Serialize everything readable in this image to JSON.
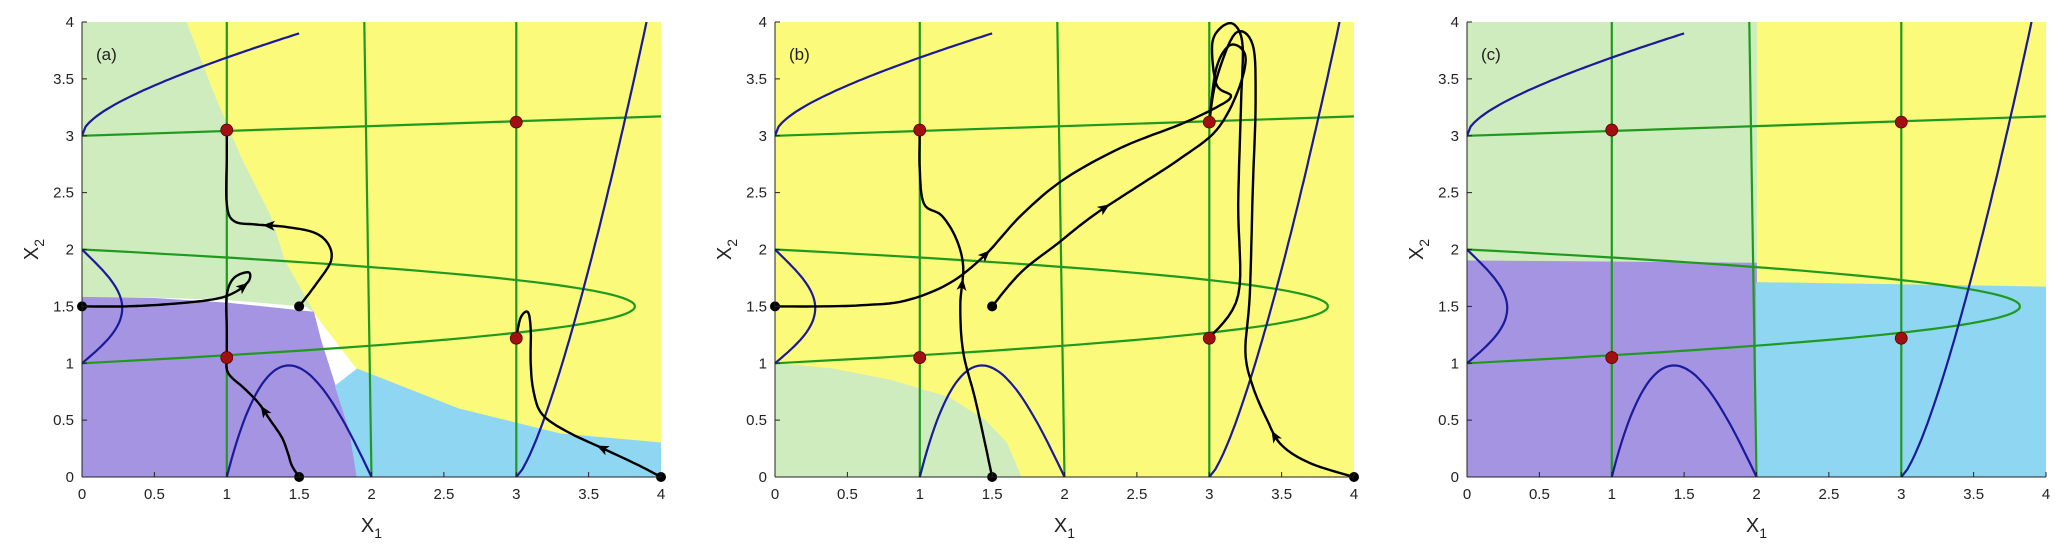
{
  "chart_data": [
    {
      "type": "phase-portrait",
      "panel_label": "(a)",
      "xlabel": "X",
      "xlabel_sub": "1",
      "ylabel": "X",
      "ylabel_sub": "2",
      "xlim": [
        0,
        4
      ],
      "ylim": [
        0,
        4
      ],
      "xticks": [
        "0",
        "0.5",
        "1",
        "1.5",
        "2",
        "2.5",
        "3",
        "3.5",
        "4"
      ],
      "yticks": [
        "0",
        "0.5",
        "1",
        "1.5",
        "2",
        "2.5",
        "3",
        "3.5",
        "4"
      ],
      "colors": {
        "yellow": "#fbfa7a",
        "green": "#cfecbf",
        "purple": "#a594e2",
        "blue": "#8fd6f2",
        "nullcline_green": "#1f9a1f",
        "nullcline_blue": "#1a1a9a",
        "fixed_point": "#a01010",
        "trajectory": "#000000"
      },
      "regions": [
        {
          "color": "yellow",
          "points": [
            [
              0.72,
              4
            ],
            [
              4,
              4
            ],
            [
              4,
              0.3
            ],
            [
              3.3,
              0.38
            ],
            [
              2.6,
              0.6
            ],
            [
              1.9,
              0.95
            ],
            [
              1.6,
              1.45
            ],
            [
              1.4,
              1.9
            ],
            [
              1.3,
              2.3
            ],
            [
              1.1,
              2.8
            ],
            [
              0.9,
              3.4
            ]
          ]
        },
        {
          "color": "green",
          "points": [
            [
              0,
              4
            ],
            [
              0.72,
              4
            ],
            [
              0.9,
              3.4
            ],
            [
              1.1,
              2.8
            ],
            [
              1.3,
              2.3
            ],
            [
              1.4,
              1.9
            ],
            [
              1.6,
              1.45
            ],
            [
              1.55,
              1.5
            ],
            [
              1.0,
              1.56
            ],
            [
              0.5,
              1.58
            ],
            [
              0,
              1.58
            ]
          ]
        },
        {
          "color": "purple",
          "points": [
            [
              0,
              0
            ],
            [
              1.9,
              0
            ],
            [
              1.85,
              0.4
            ],
            [
              1.75,
              0.8
            ],
            [
              1.65,
              1.2
            ],
            [
              1.6,
              1.45
            ],
            [
              1.0,
              1.53
            ],
            [
              0.5,
              1.57
            ],
            [
              0,
              1.58
            ]
          ]
        },
        {
          "color": "blue",
          "points": [
            [
              1.9,
              0
            ],
            [
              4,
              0
            ],
            [
              4,
              0.3
            ],
            [
              3.3,
              0.38
            ],
            [
              2.6,
              0.6
            ],
            [
              1.9,
              0.95
            ],
            [
              1.75,
              0.8
            ],
            [
              1.85,
              0.4
            ]
          ]
        }
      ],
      "fixed_points": [
        [
          1,
          3.05
        ],
        [
          3,
          3.12
        ],
        [
          1,
          1.05
        ],
        [
          3,
          1.22
        ]
      ],
      "trajectories": [
        {
          "arrows_at": [
            0.5
          ],
          "points": [
            [
              1.5,
              0
            ],
            [
              1.45,
              0.1
            ],
            [
              1.42,
              0.22
            ],
            [
              1.38,
              0.35
            ],
            [
              1.3,
              0.5
            ],
            [
              1.22,
              0.65
            ],
            [
              1.12,
              0.78
            ],
            [
              1.03,
              0.88
            ],
            [
              1,
              0.95
            ],
            [
              1,
              1.05
            ]
          ]
        },
        {
          "arrows_at": [
            0.45
          ],
          "points": [
            [
              0,
              1.5
            ],
            [
              0.3,
              1.5
            ],
            [
              0.6,
              1.52
            ],
            [
              0.9,
              1.56
            ],
            [
              1.05,
              1.62
            ],
            [
              1.15,
              1.72
            ],
            [
              1.15,
              1.8
            ],
            [
              1.05,
              1.75
            ],
            [
              1,
              1.6
            ],
            [
              1,
              1.3
            ],
            [
              1,
              1.05
            ]
          ]
        },
        {
          "arrows_at": [
            0.55
          ],
          "points": [
            [
              1.5,
              1.5
            ],
            [
              1.62,
              1.7
            ],
            [
              1.72,
              1.9
            ],
            [
              1.7,
              2.05
            ],
            [
              1.6,
              2.15
            ],
            [
              1.4,
              2.2
            ],
            [
              1.2,
              2.22
            ],
            [
              1.05,
              2.25
            ],
            [
              1,
              2.4
            ],
            [
              1,
              2.8
            ],
            [
              1,
              3.05
            ]
          ]
        },
        {
          "arrows_at": [
            0.2
          ],
          "points": [
            [
              4,
              0
            ],
            [
              3.85,
              0.1
            ],
            [
              3.6,
              0.25
            ],
            [
              3.35,
              0.4
            ],
            [
              3.18,
              0.55
            ],
            [
              3.12,
              0.75
            ],
            [
              3.1,
              1.0
            ],
            [
              3.1,
              1.3
            ],
            [
              3.08,
              1.45
            ],
            [
              3.03,
              1.4
            ],
            [
              3,
              1.22
            ]
          ]
        }
      ],
      "start_points": [
        [
          1.5,
          0
        ],
        [
          0,
          1.5
        ],
        [
          1.5,
          1.5
        ],
        [
          4,
          0
        ]
      ]
    },
    {
      "type": "phase-portrait",
      "panel_label": "(b)",
      "xlabel": "X",
      "xlabel_sub": "1",
      "ylabel": "X",
      "ylabel_sub": "2",
      "xlim": [
        0,
        4
      ],
      "ylim": [
        0,
        4
      ],
      "xticks": [
        "0",
        "0.5",
        "1",
        "1.5",
        "2",
        "2.5",
        "3",
        "3.5",
        "4"
      ],
      "yticks": [
        "0",
        "0.5",
        "1",
        "1.5",
        "2",
        "2.5",
        "3",
        "3.5",
        "4"
      ],
      "colors": {
        "yellow": "#fbfa7a",
        "green": "#cfecbf",
        "purple": "#a594e2",
        "blue": "#8fd6f2",
        "nullcline_green": "#1f9a1f",
        "nullcline_blue": "#1a1a9a",
        "fixed_point": "#a01010",
        "trajectory": "#000000"
      },
      "regions": [
        {
          "color": "yellow",
          "points": [
            [
              0,
              0
            ],
            [
              4,
              0
            ],
            [
              4,
              4
            ],
            [
              0,
              4
            ]
          ]
        },
        {
          "color": "green",
          "points": [
            [
              0,
              0
            ],
            [
              1.7,
              0
            ],
            [
              1.6,
              0.3
            ],
            [
              1.45,
              0.5
            ],
            [
              1.2,
              0.7
            ],
            [
              0.8,
              0.85
            ],
            [
              0.4,
              0.95
            ],
            [
              0,
              1.0
            ]
          ]
        }
      ],
      "fixed_points": [
        [
          1,
          3.05
        ],
        [
          3,
          3.12
        ],
        [
          1,
          1.05
        ],
        [
          3,
          1.22
        ]
      ],
      "trajectories": [
        {
          "arrows_at": [
            0.25
          ],
          "points": [
            [
              0,
              1.5
            ],
            [
              0.3,
              1.5
            ],
            [
              0.6,
              1.51
            ],
            [
              0.9,
              1.55
            ],
            [
              1.2,
              1.7
            ],
            [
              1.45,
              1.95
            ],
            [
              1.7,
              2.3
            ],
            [
              2.0,
              2.62
            ],
            [
              2.4,
              2.9
            ],
            [
              2.8,
              3.1
            ],
            [
              3.05,
              3.25
            ],
            [
              3.15,
              3.35
            ],
            [
              3.05,
              3.45
            ],
            [
              3.02,
              3.8
            ],
            [
              3.08,
              3.95
            ],
            [
              3.17,
              3.98
            ],
            [
              3.23,
              3.8
            ],
            [
              3.22,
              3.3
            ],
            [
              3.2,
              2.4
            ],
            [
              3.2,
              1.6
            ],
            [
              3.0,
              1.22
            ]
          ]
        },
        {
          "arrows_at": [
            0.3
          ],
          "points": [
            [
              1.5,
              1.5
            ],
            [
              1.7,
              1.8
            ],
            [
              1.95,
              2.05
            ],
            [
              2.2,
              2.3
            ],
            [
              2.5,
              2.55
            ],
            [
              2.8,
              2.8
            ],
            [
              3.05,
              3.05
            ],
            [
              3.2,
              3.4
            ],
            [
              3.25,
              3.7
            ],
            [
              3.15,
              3.8
            ],
            [
              3.05,
              3.6
            ],
            [
              3.0,
              3.12
            ]
          ]
        },
        {
          "arrows_at": [
            0.45
          ],
          "points": [
            [
              1.5,
              0
            ],
            [
              1.45,
              0.3
            ],
            [
              1.38,
              0.7
            ],
            [
              1.3,
              1.1
            ],
            [
              1.28,
              1.5
            ],
            [
              1.3,
              1.85
            ],
            [
              1.25,
              2.1
            ],
            [
              1.15,
              2.3
            ],
            [
              1.03,
              2.4
            ],
            [
              1,
              2.7
            ],
            [
              1,
              3.05
            ]
          ]
        },
        {
          "arrows_at": [
            0.2
          ],
          "points": [
            [
              4,
              0
            ],
            [
              3.7,
              0.12
            ],
            [
              3.5,
              0.28
            ],
            [
              3.4,
              0.5
            ],
            [
              3.3,
              0.8
            ],
            [
              3.25,
              1.1
            ],
            [
              3.28,
              1.6
            ],
            [
              3.3,
              2.5
            ],
            [
              3.32,
              3.3
            ],
            [
              3.3,
              3.8
            ],
            [
              3.18,
              3.9
            ],
            [
              3.05,
              3.5
            ],
            [
              3.0,
              3.12
            ]
          ]
        }
      ],
      "start_points": [
        [
          1.5,
          0
        ],
        [
          0,
          1.5
        ],
        [
          1.5,
          1.5
        ],
        [
          4,
          0
        ]
      ]
    },
    {
      "type": "phase-portrait",
      "panel_label": "(c)",
      "xlabel": "X",
      "xlabel_sub": "1",
      "ylabel": "X",
      "ylabel_sub": "2",
      "xlim": [
        0,
        4
      ],
      "ylim": [
        0,
        4
      ],
      "xticks": [
        "0",
        "0.5",
        "1",
        "1.5",
        "2",
        "2.5",
        "3",
        "3.5",
        "4"
      ],
      "yticks": [
        "0",
        "0.5",
        "1",
        "1.5",
        "2",
        "2.5",
        "3",
        "3.5",
        "4"
      ],
      "colors": {
        "yellow": "#fbfa7a",
        "green": "#cfecbf",
        "purple": "#a594e2",
        "blue": "#8fd6f2",
        "nullcline_green": "#1f9a1f",
        "nullcline_blue": "#1a1a9a",
        "fixed_point": "#a01010",
        "trajectory": "#000000"
      },
      "regions": [
        {
          "color": "yellow",
          "points": [
            [
              2,
              4
            ],
            [
              4,
              4
            ],
            [
              4,
              1.67
            ],
            [
              2,
              1.71
            ]
          ]
        },
        {
          "color": "green",
          "points": [
            [
              0,
              4
            ],
            [
              2,
              4
            ],
            [
              2,
              1.88
            ],
            [
              0,
              1.9
            ]
          ]
        },
        {
          "color": "purple",
          "points": [
            [
              0,
              0
            ],
            [
              2,
              0
            ],
            [
              2,
              1.88
            ],
            [
              0,
              1.9
            ]
          ]
        },
        {
          "color": "blue",
          "points": [
            [
              2,
              0
            ],
            [
              4,
              0
            ],
            [
              4,
              1.67
            ],
            [
              2,
              1.71
            ]
          ]
        }
      ],
      "fixed_points": [
        [
          1,
          3.05
        ],
        [
          3,
          3.12
        ],
        [
          1,
          1.05
        ],
        [
          3,
          1.22
        ]
      ],
      "trajectories": [],
      "start_points": []
    }
  ]
}
